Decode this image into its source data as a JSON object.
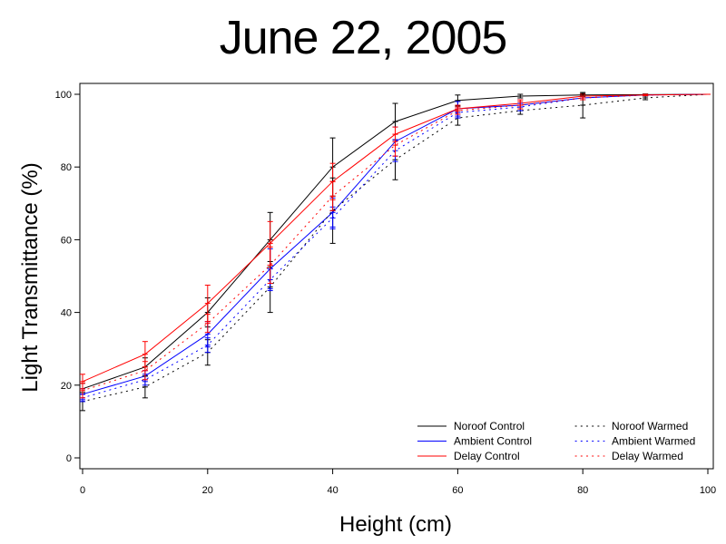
{
  "chart_data": {
    "type": "line",
    "title": "June 22, 2005",
    "xlabel": "Height (cm)",
    "ylabel": "Light Transmittance (%)",
    "xlim": [
      0,
      100
    ],
    "ylim": [
      0,
      100
    ],
    "xticks": [
      0,
      20,
      40,
      60,
      80,
      100
    ],
    "yticks": [
      0,
      20,
      40,
      60,
      80,
      100
    ],
    "grid": false,
    "legend_position": "bottom-right",
    "series": [
      {
        "name": "Noroof Control",
        "color": "#000000",
        "style": "solid",
        "x": [
          0,
          10,
          20,
          30,
          40,
          50,
          60,
          70,
          80,
          90,
          100
        ],
        "y": [
          19,
          25,
          40,
          60,
          80,
          92.5,
          98.3,
          99.5,
          99.8,
          99.9,
          100
        ],
        "err": [
          1.5,
          2.5,
          4,
          7.5,
          8,
          5,
          1.5,
          0.5,
          0.4,
          0.2,
          0
        ]
      },
      {
        "name": "Ambient Control",
        "color": "#0000ff",
        "style": "solid",
        "x": [
          0,
          10,
          20,
          30,
          40,
          50,
          60,
          70,
          80,
          90,
          100
        ],
        "y": [
          17.5,
          22.5,
          34,
          52,
          67.5,
          87,
          96,
          97,
          99,
          99.8,
          100
        ],
        "err": [
          1.5,
          1.5,
          3.5,
          5.5,
          4,
          4,
          2,
          1.5,
          0.5,
          0.2,
          0
        ]
      },
      {
        "name": "Delay Control",
        "color": "#ff0000",
        "style": "solid",
        "x": [
          0,
          10,
          20,
          30,
          40,
          50,
          60,
          70,
          80,
          90,
          100
        ],
        "y": [
          21,
          28.5,
          42.5,
          59,
          76,
          89,
          96,
          97.5,
          99.5,
          99.8,
          100
        ],
        "err": [
          2,
          3.5,
          5,
          6,
          5,
          2,
          1,
          1,
          0.5,
          0.2,
          0
        ]
      },
      {
        "name": "Noroof Warmed",
        "color": "#000000",
        "style": "dotted",
        "x": [
          0,
          10,
          20,
          30,
          40,
          50,
          60,
          70,
          80,
          90,
          100
        ],
        "y": [
          15.5,
          19.5,
          29,
          47,
          68,
          82,
          93.5,
          95.5,
          97,
          99,
          100
        ],
        "err": [
          2.5,
          3,
          3.5,
          7,
          9,
          5.5,
          2,
          1,
          3.5,
          0.5,
          0
        ]
      },
      {
        "name": "Ambient Warmed",
        "color": "#0000ff",
        "style": "dotted",
        "x": [
          0,
          10,
          20,
          30,
          40,
          50,
          60,
          70,
          80,
          90,
          100
        ],
        "y": [
          16.5,
          21.5,
          31,
          49,
          66,
          84.5,
          95,
          96.5,
          99,
          99.8,
          100
        ],
        "err": [
          1,
          1.5,
          2,
          3,
          3,
          3,
          1.5,
          1,
          0.5,
          0.2,
          0
        ]
      },
      {
        "name": "Delay Warmed",
        "color": "#ff0000",
        "style": "dotted",
        "x": [
          0,
          10,
          20,
          30,
          40,
          50,
          60,
          70,
          80,
          90,
          100
        ],
        "y": [
          18.5,
          24,
          37,
          53,
          72,
          86,
          95.5,
          97,
          99,
          99.8,
          100
        ],
        "err": [
          2,
          2.5,
          2.5,
          5,
          4,
          3,
          1,
          1,
          0.5,
          0.2,
          0
        ]
      }
    ]
  }
}
